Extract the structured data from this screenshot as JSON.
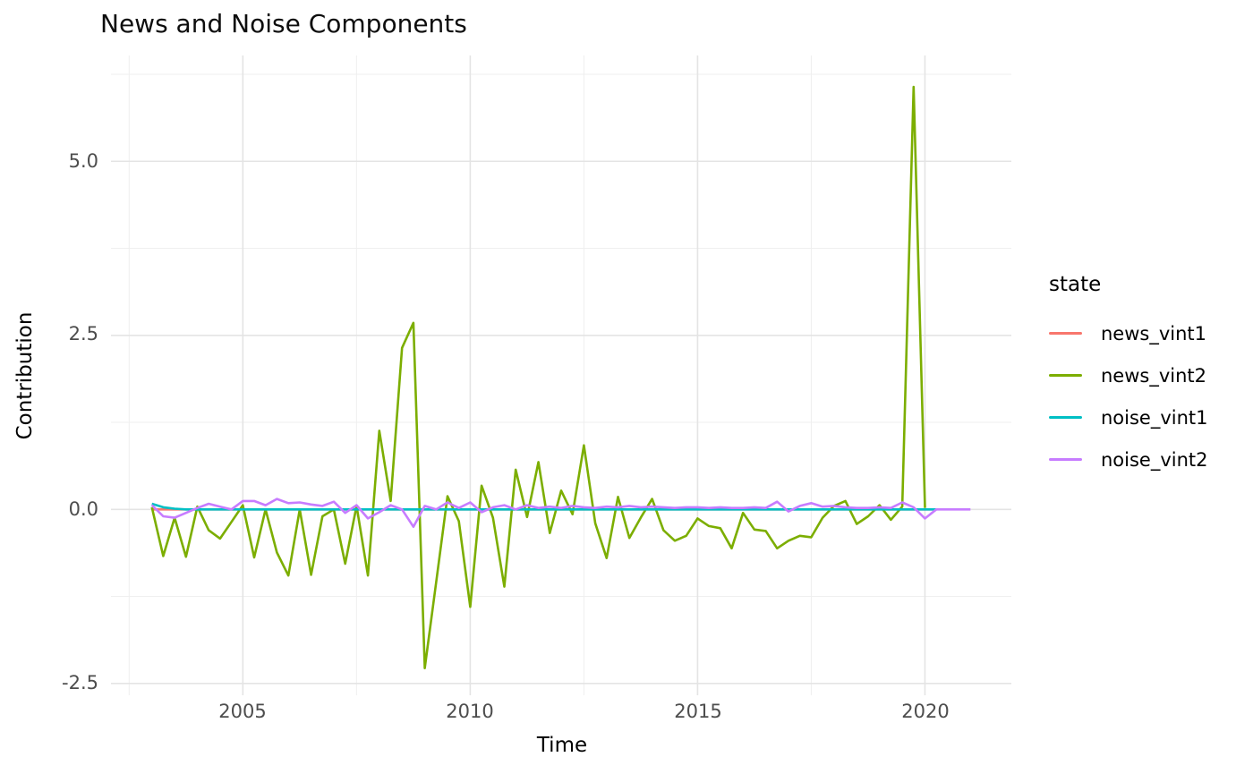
{
  "chart_data": {
    "type": "line",
    "title": "News and Noise Components",
    "xlabel": "Time",
    "ylabel": "Contribution",
    "legend_title": "state",
    "legend_position": "right",
    "grid": true,
    "xlim": [
      2002.1,
      2021.9
    ],
    "ylim": [
      -2.67,
      6.52
    ],
    "x_ticks": {
      "values": [
        2005,
        2010,
        2015,
        2020
      ],
      "labels": [
        "2005",
        "2010",
        "2015",
        "2020"
      ],
      "minor": [
        2002.5,
        2007.5,
        2012.5,
        2017.5
      ]
    },
    "y_ticks": {
      "values": [
        5.0,
        2.5,
        0.0,
        -2.5
      ],
      "labels": [
        "5.0",
        "2.5",
        "0.0",
        "-2.5"
      ],
      "minor": [
        6.25,
        3.75,
        1.25,
        -1.25
      ]
    },
    "series": [
      {
        "name": "news_vint1",
        "color": "#F8766D",
        "points": [
          [
            2003.0,
            0.0
          ],
          [
            2020.25,
            0.0
          ]
        ]
      },
      {
        "name": "news_vint2",
        "color": "#7CAE00",
        "points": [
          [
            2003.0,
            0.03
          ],
          [
            2003.25,
            -0.67
          ],
          [
            2003.5,
            -0.12
          ],
          [
            2003.75,
            -0.68
          ],
          [
            2004.0,
            0.04
          ],
          [
            2004.25,
            -0.3
          ],
          [
            2004.5,
            -0.42
          ],
          [
            2004.75,
            -0.18
          ],
          [
            2005.0,
            0.06
          ],
          [
            2005.25,
            -0.69
          ],
          [
            2005.5,
            0.0
          ],
          [
            2005.75,
            -0.62
          ],
          [
            2006.0,
            -0.95
          ],
          [
            2006.25,
            0.0
          ],
          [
            2006.5,
            -0.94
          ],
          [
            2006.75,
            -0.1
          ],
          [
            2007.0,
            0.0
          ],
          [
            2007.25,
            -0.78
          ],
          [
            2007.5,
            0.05
          ],
          [
            2007.75,
            -0.95
          ],
          [
            2008.0,
            1.13
          ],
          [
            2008.25,
            0.12
          ],
          [
            2008.5,
            2.32
          ],
          [
            2008.75,
            2.68
          ],
          [
            2009.0,
            -2.28
          ],
          [
            2009.25,
            -1.05
          ],
          [
            2009.5,
            0.19
          ],
          [
            2009.75,
            -0.17
          ],
          [
            2010.0,
            -1.4
          ],
          [
            2010.25,
            0.34
          ],
          [
            2010.5,
            -0.12
          ],
          [
            2010.75,
            -1.11
          ],
          [
            2011.0,
            0.57
          ],
          [
            2011.25,
            -0.11
          ],
          [
            2011.5,
            0.68
          ],
          [
            2011.75,
            -0.34
          ],
          [
            2012.0,
            0.27
          ],
          [
            2012.25,
            -0.07
          ],
          [
            2012.5,
            0.92
          ],
          [
            2012.75,
            -0.2
          ],
          [
            2013.0,
            -0.7
          ],
          [
            2013.25,
            0.18
          ],
          [
            2013.5,
            -0.41
          ],
          [
            2013.75,
            -0.12
          ],
          [
            2014.0,
            0.15
          ],
          [
            2014.25,
            -0.3
          ],
          [
            2014.5,
            -0.45
          ],
          [
            2014.75,
            -0.38
          ],
          [
            2015.0,
            -0.13
          ],
          [
            2015.25,
            -0.24
          ],
          [
            2015.5,
            -0.27
          ],
          [
            2015.75,
            -0.56
          ],
          [
            2016.0,
            -0.05
          ],
          [
            2016.25,
            -0.29
          ],
          [
            2016.5,
            -0.31
          ],
          [
            2016.75,
            -0.56
          ],
          [
            2017.0,
            -0.45
          ],
          [
            2017.25,
            -0.38
          ],
          [
            2017.5,
            -0.4
          ],
          [
            2017.75,
            -0.12
          ],
          [
            2018.0,
            0.05
          ],
          [
            2018.25,
            0.12
          ],
          [
            2018.5,
            -0.21
          ],
          [
            2018.75,
            -0.1
          ],
          [
            2019.0,
            0.06
          ],
          [
            2019.25,
            -0.15
          ],
          [
            2019.5,
            0.04
          ],
          [
            2019.75,
            6.07
          ],
          [
            2020.0,
            0.02
          ]
        ]
      },
      {
        "name": "noise_vint1",
        "color": "#00BFC4",
        "points": [
          [
            2003.0,
            0.08
          ],
          [
            2003.25,
            0.03
          ],
          [
            2003.5,
            0.01
          ],
          [
            2003.75,
            0.0
          ],
          [
            2020.25,
            0.0
          ]
        ]
      },
      {
        "name": "noise_vint2",
        "color": "#C77CFF",
        "points": [
          [
            2003.0,
            0.06
          ],
          [
            2003.25,
            -0.1
          ],
          [
            2003.5,
            -0.12
          ],
          [
            2003.75,
            -0.05
          ],
          [
            2004.0,
            0.02
          ],
          [
            2004.25,
            0.08
          ],
          [
            2004.5,
            0.04
          ],
          [
            2004.75,
            0.0
          ],
          [
            2005.0,
            0.12
          ],
          [
            2005.25,
            0.12
          ],
          [
            2005.5,
            0.06
          ],
          [
            2005.75,
            0.15
          ],
          [
            2006.0,
            0.09
          ],
          [
            2006.25,
            0.1
          ],
          [
            2006.5,
            0.07
          ],
          [
            2006.75,
            0.05
          ],
          [
            2007.0,
            0.11
          ],
          [
            2007.25,
            -0.05
          ],
          [
            2007.5,
            0.06
          ],
          [
            2007.75,
            -0.13
          ],
          [
            2008.0,
            -0.04
          ],
          [
            2008.25,
            0.06
          ],
          [
            2008.5,
            0.0
          ],
          [
            2008.75,
            -0.25
          ],
          [
            2009.0,
            0.05
          ],
          [
            2009.25,
            0.0
          ],
          [
            2009.5,
            0.1
          ],
          [
            2009.75,
            0.02
          ],
          [
            2010.0,
            0.1
          ],
          [
            2010.25,
            -0.04
          ],
          [
            2010.5,
            0.03
          ],
          [
            2010.75,
            0.06
          ],
          [
            2011.0,
            0.0
          ],
          [
            2011.25,
            0.06
          ],
          [
            2011.5,
            0.02
          ],
          [
            2011.75,
            0.04
          ],
          [
            2012.0,
            0.02
          ],
          [
            2012.25,
            0.05
          ],
          [
            2012.5,
            0.03
          ],
          [
            2012.75,
            0.02
          ],
          [
            2013.0,
            0.04
          ],
          [
            2013.25,
            0.03
          ],
          [
            2013.5,
            0.05
          ],
          [
            2013.75,
            0.03
          ],
          [
            2014.0,
            0.04
          ],
          [
            2014.25,
            0.03
          ],
          [
            2014.5,
            0.02
          ],
          [
            2014.75,
            0.03
          ],
          [
            2015.0,
            0.03
          ],
          [
            2015.25,
            0.02
          ],
          [
            2015.5,
            0.03
          ],
          [
            2015.75,
            0.02
          ],
          [
            2016.0,
            0.02
          ],
          [
            2016.25,
            0.03
          ],
          [
            2016.5,
            0.02
          ],
          [
            2016.75,
            0.11
          ],
          [
            2017.0,
            -0.03
          ],
          [
            2017.25,
            0.05
          ],
          [
            2017.5,
            0.09
          ],
          [
            2017.75,
            0.04
          ],
          [
            2018.0,
            0.05
          ],
          [
            2018.25,
            0.03
          ],
          [
            2018.5,
            0.02
          ],
          [
            2018.75,
            0.02
          ],
          [
            2019.0,
            0.03
          ],
          [
            2019.25,
            0.02
          ],
          [
            2019.5,
            0.1
          ],
          [
            2019.75,
            0.03
          ],
          [
            2020.0,
            -0.13
          ],
          [
            2020.25,
            0.0
          ],
          [
            2020.5,
            0.0
          ],
          [
            2020.75,
            0.0
          ],
          [
            2021.0,
            0.0
          ]
        ]
      }
    ]
  }
}
